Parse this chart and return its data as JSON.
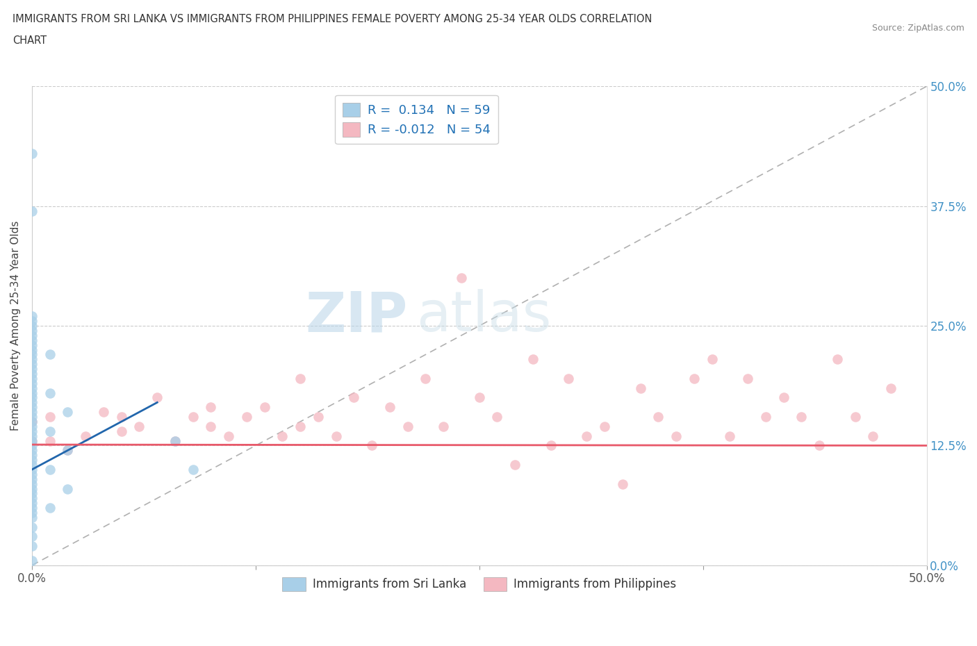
{
  "title_line1": "IMMIGRANTS FROM SRI LANKA VS IMMIGRANTS FROM PHILIPPINES FEMALE POVERTY AMONG 25-34 YEAR OLDS CORRELATION",
  "title_line2": "CHART",
  "source_text": "Source: ZipAtlas.com",
  "ylabel": "Female Poverty Among 25-34 Year Olds",
  "xlim": [
    0.0,
    0.5
  ],
  "ylim": [
    0.0,
    0.5
  ],
  "xticks": [
    0.0,
    0.125,
    0.25,
    0.375,
    0.5
  ],
  "xtick_labels": [
    "0.0%",
    "",
    "",
    "",
    "50.0%"
  ],
  "yticks": [
    0.0,
    0.125,
    0.25,
    0.375,
    0.5
  ],
  "ytick_labels_right": [
    "0.0%",
    "12.5%",
    "25.0%",
    "37.5%",
    "50.0%"
  ],
  "sri_lanka_color": "#a8cfe8",
  "philippines_color": "#f4b8c1",
  "sri_lanka_line_color": "#2166ac",
  "philippines_line_color": "#e8596a",
  "sri_lanka_R": 0.134,
  "sri_lanka_N": 59,
  "philippines_R": -0.012,
  "philippines_N": 54,
  "legend_label_1": "Immigrants from Sri Lanka",
  "legend_label_2": "Immigrants from Philippines",
  "watermark_zip": "ZIP",
  "watermark_atlas": "atlas",
  "sl_x": [
    0.0,
    0.0,
    0.0,
    0.0,
    0.0,
    0.0,
    0.0,
    0.0,
    0.0,
    0.0,
    0.0,
    0.0,
    0.0,
    0.0,
    0.0,
    0.0,
    0.0,
    0.0,
    0.0,
    0.0,
    0.0,
    0.0,
    0.0,
    0.0,
    0.0,
    0.0,
    0.0,
    0.0,
    0.0,
    0.0,
    0.0,
    0.0,
    0.0,
    0.0,
    0.0,
    0.0,
    0.0,
    0.0,
    0.0,
    0.0,
    0.0,
    0.0,
    0.0,
    0.0,
    0.0,
    0.0,
    0.0,
    0.0,
    0.0,
    0.01,
    0.01,
    0.01,
    0.01,
    0.01,
    0.02,
    0.02,
    0.02,
    0.08,
    0.09
  ],
  "sl_y": [
    0.02,
    0.03,
    0.04,
    0.05,
    0.055,
    0.06,
    0.065,
    0.07,
    0.075,
    0.08,
    0.085,
    0.09,
    0.095,
    0.1,
    0.105,
    0.11,
    0.115,
    0.12,
    0.125,
    0.13,
    0.135,
    0.14,
    0.145,
    0.15,
    0.155,
    0.16,
    0.165,
    0.17,
    0.175,
    0.18,
    0.185,
    0.19,
    0.195,
    0.2,
    0.205,
    0.21,
    0.215,
    0.22,
    0.225,
    0.23,
    0.235,
    0.24,
    0.245,
    0.25,
    0.255,
    0.26,
    0.43,
    0.37,
    0.005,
    0.06,
    0.1,
    0.14,
    0.18,
    0.22,
    0.08,
    0.12,
    0.16,
    0.13,
    0.1
  ],
  "ph_x": [
    0.0,
    0.0,
    0.01,
    0.01,
    0.02,
    0.03,
    0.04,
    0.05,
    0.05,
    0.06,
    0.07,
    0.08,
    0.09,
    0.1,
    0.1,
    0.11,
    0.12,
    0.13,
    0.14,
    0.15,
    0.15,
    0.16,
    0.17,
    0.18,
    0.19,
    0.2,
    0.21,
    0.22,
    0.23,
    0.24,
    0.25,
    0.26,
    0.27,
    0.28,
    0.29,
    0.3,
    0.31,
    0.32,
    0.33,
    0.34,
    0.35,
    0.36,
    0.37,
    0.38,
    0.39,
    0.4,
    0.41,
    0.42,
    0.43,
    0.44,
    0.45,
    0.46,
    0.47,
    0.48
  ],
  "ph_y": [
    0.13,
    0.15,
    0.13,
    0.155,
    0.12,
    0.135,
    0.16,
    0.14,
    0.155,
    0.145,
    0.175,
    0.13,
    0.155,
    0.145,
    0.165,
    0.135,
    0.155,
    0.165,
    0.135,
    0.195,
    0.145,
    0.155,
    0.135,
    0.175,
    0.125,
    0.165,
    0.145,
    0.195,
    0.145,
    0.3,
    0.175,
    0.155,
    0.105,
    0.215,
    0.125,
    0.195,
    0.135,
    0.145,
    0.085,
    0.185,
    0.155,
    0.135,
    0.195,
    0.215,
    0.135,
    0.195,
    0.155,
    0.175,
    0.155,
    0.125,
    0.215,
    0.155,
    0.135,
    0.185
  ]
}
